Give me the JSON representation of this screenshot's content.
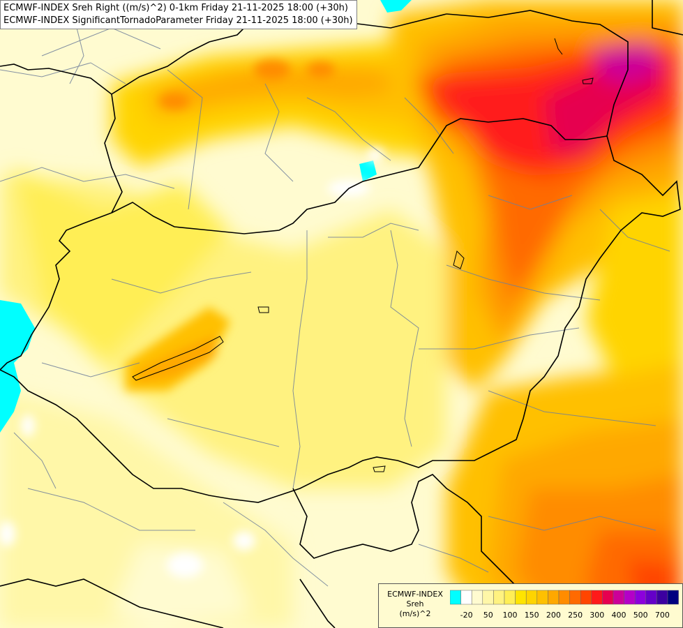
{
  "titles": {
    "line1": "ECMWF-INDEX Sreh Right ((m/s)^2) 0-1km Friday 21-11-2025 18:00 (+30h)",
    "line2": "ECMWF-INDEX SignificantTornadoParameter Friday 21-11-2025 18:00 (+30h)"
  },
  "legend": {
    "model": "ECMWF-INDEX",
    "variable": "Sreh",
    "unit": "(m/s)^2",
    "colors": [
      "#00ffff",
      "#ffffff",
      "#fffbd0",
      "#fff7a8",
      "#fff280",
      "#ffee55",
      "#ffe400",
      "#ffd400",
      "#ffc000",
      "#ffa800",
      "#ff8c00",
      "#ff6a00",
      "#ff4500",
      "#ff1a1a",
      "#e60050",
      "#cc0099",
      "#b400c8",
      "#8c00dc",
      "#6400c8",
      "#3c00a0",
      "#000080"
    ],
    "ticks": [
      {
        "label": "-20",
        "index": 1
      },
      {
        "label": "50",
        "index": 3
      },
      {
        "label": "100",
        "index": 5
      },
      {
        "label": "150",
        "index": 7
      },
      {
        "label": "200",
        "index": 9
      },
      {
        "label": "250",
        "index": 11
      },
      {
        "label": "300",
        "index": 13
      },
      {
        "label": "400",
        "index": 15
      },
      {
        "label": "500",
        "index": 17
      },
      {
        "label": "700",
        "index": 19
      }
    ]
  }
}
